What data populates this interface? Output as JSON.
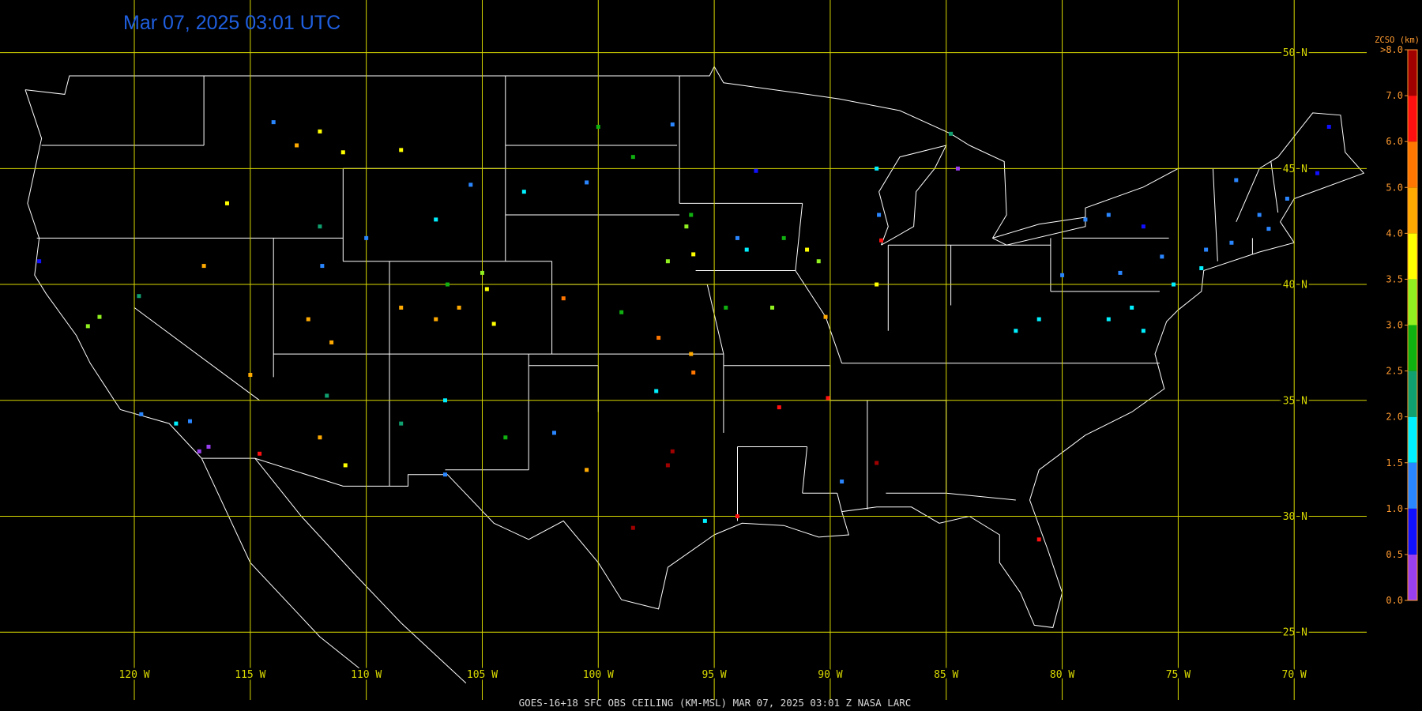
{
  "header": {
    "timestamp": "Mar 07, 2025 03:01 UTC"
  },
  "footer": "GOES-16+18  SFC OBS CEILING (KM-MSL)   MAR 07, 2025 03:01 Z   NASA LARC",
  "map": {
    "xlim": [
      -125.79,
      -64.49
    ],
    "ylim": [
      52.27,
      21.6
    ],
    "lat_lines": [
      {
        "value": 50,
        "label": "50 N"
      },
      {
        "value": 45,
        "label": "45 N"
      },
      {
        "value": 40,
        "label": "40 N"
      },
      {
        "value": 35,
        "label": "35 N"
      },
      {
        "value": 30,
        "label": "30 N"
      },
      {
        "value": 25,
        "label": "25 N"
      }
    ],
    "lon_lines": [
      {
        "value": -120,
        "label": "120 W"
      },
      {
        "value": -115,
        "label": "115 W"
      },
      {
        "value": -110,
        "label": "110 W"
      },
      {
        "value": -105,
        "label": "105 W"
      },
      {
        "value": -100,
        "label": "100 W"
      },
      {
        "value": -95,
        "label": "95 W"
      },
      {
        "value": -90,
        "label": "90 W"
      },
      {
        "value": -85,
        "label": "85 W"
      },
      {
        "value": -80,
        "label": "80 W"
      },
      {
        "value": -75,
        "label": "75 W"
      },
      {
        "value": -70,
        "label": "70 W"
      }
    ]
  },
  "colorbar": {
    "title": "ZCSO (km)",
    "ticks": [
      {
        "value": 0,
        "label": "0.0"
      },
      {
        "value": 0.5,
        "label": "0.5"
      },
      {
        "value": 1,
        "label": "1.0"
      },
      {
        "value": 1.5,
        "label": "1.5"
      },
      {
        "value": 2,
        "label": "2.0"
      },
      {
        "value": 2.5,
        "label": "2.5"
      },
      {
        "value": 3,
        "label": "3.0"
      },
      {
        "value": 3.5,
        "label": "3.5"
      },
      {
        "value": 4,
        "label": "4.0"
      },
      {
        "value": 5,
        "label": "5.0"
      },
      {
        "value": 6,
        "label": "6.0"
      },
      {
        "value": 7,
        "label": "7.0"
      },
      {
        "value": 8,
        "label": ">8.0"
      }
    ],
    "colors": [
      "#9a3ff0",
      "#1010ff",
      "#2a86ff",
      "#00f0ff",
      "#10a070",
      "#10b010",
      "#90f020",
      "#ffff00",
      "#ffaa00",
      "#ff7700",
      "#ff1010",
      "#a00000"
    ]
  },
  "observations": [
    {
      "lon": -74,
      "lat": 40.7,
      "value": 1.7
    },
    {
      "lon": -75.2,
      "lat": 40,
      "value": 1.7
    },
    {
      "lon": -73.8,
      "lat": 41.5,
      "value": 1.3
    },
    {
      "lon": -72.7,
      "lat": 41.8,
      "value": 1.2
    },
    {
      "lon": -71.1,
      "lat": 42.4,
      "value": 1.3
    },
    {
      "lon": -71.5,
      "lat": 43,
      "value": 1.2
    },
    {
      "lon": -72.5,
      "lat": 44.5,
      "value": 1.2
    },
    {
      "lon": -70.3,
      "lat": 43.7,
      "value": 1.3
    },
    {
      "lon": -69,
      "lat": 44.8,
      "value": 0.8
    },
    {
      "lon": -68.5,
      "lat": 46.8,
      "value": 0.8
    },
    {
      "lon": -76.5,
      "lat": 42.5,
      "value": 0.8
    },
    {
      "lon": -78,
      "lat": 43,
      "value": 1.2
    },
    {
      "lon": -79,
      "lat": 42.8,
      "value": 1.2
    },
    {
      "lon": -80,
      "lat": 40.4,
      "value": 1.3
    },
    {
      "lon": -77,
      "lat": 39,
      "value": 1.7
    },
    {
      "lon": -76.5,
      "lat": 38,
      "value": 1.8
    },
    {
      "lon": -78,
      "lat": 38.5,
      "value": 1.7
    },
    {
      "lon": -81,
      "lat": 38.5,
      "value": 1.7
    },
    {
      "lon": -82,
      "lat": 38,
      "value": 1.7
    },
    {
      "lon": -75.7,
      "lat": 41.2,
      "value": 1.2
    },
    {
      "lon": -77.5,
      "lat": 40.5,
      "value": 1.2
    },
    {
      "lon": -84.5,
      "lat": 45,
      "value": 0.3
    },
    {
      "lon": -84.8,
      "lat": 46.5,
      "value": 2.3
    },
    {
      "lon": -87.9,
      "lat": 43,
      "value": 1.3
    },
    {
      "lon": -88,
      "lat": 45,
      "value": 1.8
    },
    {
      "lon": -93.2,
      "lat": 44.9,
      "value": 0.8
    },
    {
      "lon": -96,
      "lat": 43,
      "value": 2.5
    },
    {
      "lon": -94,
      "lat": 42,
      "value": 1.2
    },
    {
      "lon": -93.6,
      "lat": 41.5,
      "value": 1.7
    },
    {
      "lon": -92,
      "lat": 42,
      "value": 2.7
    },
    {
      "lon": -91,
      "lat": 41.5,
      "value": 3.7
    },
    {
      "lon": -90.5,
      "lat": 41,
      "value": 3.2
    },
    {
      "lon": -95.9,
      "lat": 41.3,
      "value": 3.6
    },
    {
      "lon": -97,
      "lat": 41,
      "value": 3.3
    },
    {
      "lon": -96.2,
      "lat": 42.5,
      "value": 3.2
    },
    {
      "lon": -96.8,
      "lat": 46.9,
      "value": 1.2
    },
    {
      "lon": -98.5,
      "lat": 45.5,
      "value": 2.7
    },
    {
      "lon": -100.5,
      "lat": 44.4,
      "value": 1.4
    },
    {
      "lon": -100,
      "lat": 46.8,
      "value": 2.5
    },
    {
      "lon": -103.2,
      "lat": 44,
      "value": 1.7
    },
    {
      "lon": -92.5,
      "lat": 39,
      "value": 3.2
    },
    {
      "lon": -94.5,
      "lat": 39,
      "value": 2.7
    },
    {
      "lon": -90.2,
      "lat": 38.6,
      "value": 4.5
    },
    {
      "lon": -88,
      "lat": 40,
      "value": 3.6
    },
    {
      "lon": -104.8,
      "lat": 39.8,
      "value": 3.5
    },
    {
      "lon": -105,
      "lat": 40.5,
      "value": 3.2
    },
    {
      "lon": -106,
      "lat": 39,
      "value": 4.3
    },
    {
      "lon": -107,
      "lat": 38.5,
      "value": 4.2
    },
    {
      "lon": -106.5,
      "lat": 40,
      "value": 2.7
    },
    {
      "lon": -108.5,
      "lat": 39,
      "value": 4.3
    },
    {
      "lon": -104.5,
      "lat": 38.3,
      "value": 3.6
    },
    {
      "lon": -110,
      "lat": 42,
      "value": 1.3
    },
    {
      "lon": -107,
      "lat": 42.8,
      "value": 1.7
    },
    {
      "lon": -105.5,
      "lat": 44.3,
      "value": 1.3
    },
    {
      "lon": -108.5,
      "lat": 45.8,
      "value": 3.6
    },
    {
      "lon": -111,
      "lat": 45.7,
      "value": 3.6
    },
    {
      "lon": -112,
      "lat": 46.6,
      "value": 3.7
    },
    {
      "lon": -113,
      "lat": 46,
      "value": 4.5
    },
    {
      "lon": -114,
      "lat": 47,
      "value": 1.2
    },
    {
      "lon": -112,
      "lat": 42.5,
      "value": 2.3
    },
    {
      "lon": -111.9,
      "lat": 40.8,
      "value": 1.2
    },
    {
      "lon": -112.5,
      "lat": 38.5,
      "value": 4.5
    },
    {
      "lon": -111.5,
      "lat": 37.5,
      "value": 4.3
    },
    {
      "lon": -101.5,
      "lat": 39.4,
      "value": 5.3
    },
    {
      "lon": -99,
      "lat": 38.8,
      "value": 2.6
    },
    {
      "lon": -97.4,
      "lat": 37.7,
      "value": 5.3
    },
    {
      "lon": -96,
      "lat": 37,
      "value": 4.3
    },
    {
      "lon": -97.5,
      "lat": 35.4,
      "value": 1.5
    },
    {
      "lon": -95.9,
      "lat": 36.2,
      "value": 5.3
    },
    {
      "lon": -96.8,
      "lat": 32.8,
      "value": 7.5
    },
    {
      "lon": -97,
      "lat": 32.2,
      "value": 7.5
    },
    {
      "lon": -98.5,
      "lat": 29.5,
      "value": 7.5
    },
    {
      "lon": -95.4,
      "lat": 29.8,
      "value": 1.5
    },
    {
      "lon": -94,
      "lat": 30,
      "value": 6.5
    },
    {
      "lon": -100.5,
      "lat": 32,
      "value": 4.8
    },
    {
      "lon": -101.9,
      "lat": 33.6,
      "value": 1.4
    },
    {
      "lon": -104,
      "lat": 33.4,
      "value": 2.5
    },
    {
      "lon": -106.6,
      "lat": 31.8,
      "value": 1.2
    },
    {
      "lon": -106.6,
      "lat": 35,
      "value": 1.5
    },
    {
      "lon": -108.5,
      "lat": 34,
      "value": 2.3
    },
    {
      "lon": -110.9,
      "lat": 32.2,
      "value": 3.7
    },
    {
      "lon": -112,
      "lat": 33.4,
      "value": 4.4
    },
    {
      "lon": -114.6,
      "lat": 32.7,
      "value": 6.5
    },
    {
      "lon": -111.7,
      "lat": 35.2,
      "value": 2.3
    },
    {
      "lon": -115,
      "lat": 36.1,
      "value": 4.6
    },
    {
      "lon": -117.6,
      "lat": 34.1,
      "value": 1.2
    },
    {
      "lon": -118.2,
      "lat": 34,
      "value": 1.5
    },
    {
      "lon": -117.2,
      "lat": 32.8,
      "value": 0.3
    },
    {
      "lon": -116.8,
      "lat": 33,
      "value": 0.3
    },
    {
      "lon": -119.7,
      "lat": 34.4,
      "value": 1.3
    },
    {
      "lon": -122,
      "lat": 38.2,
      "value": 3
    },
    {
      "lon": -121.5,
      "lat": 38.6,
      "value": 3.2
    },
    {
      "lon": -124.1,
      "lat": 41,
      "value": 0.8
    },
    {
      "lon": -119.8,
      "lat": 39.5,
      "value": 2.3
    },
    {
      "lon": -116,
      "lat": 43.5,
      "value": 3.6
    },
    {
      "lon": -117,
      "lat": 40.8,
      "value": 4.8
    },
    {
      "lon": -90.1,
      "lat": 35.1,
      "value": 6.5
    },
    {
      "lon": -92.2,
      "lat": 34.7,
      "value": 6.5
    },
    {
      "lon": -88,
      "lat": 32.3,
      "value": 7.5
    },
    {
      "lon": -89.5,
      "lat": 31.5,
      "value": 1.3
    },
    {
      "lon": -81,
      "lat": 29,
      "value": 6.5
    },
    {
      "lon": -87.8,
      "lat": 41.9,
      "value": 6.5
    }
  ]
}
